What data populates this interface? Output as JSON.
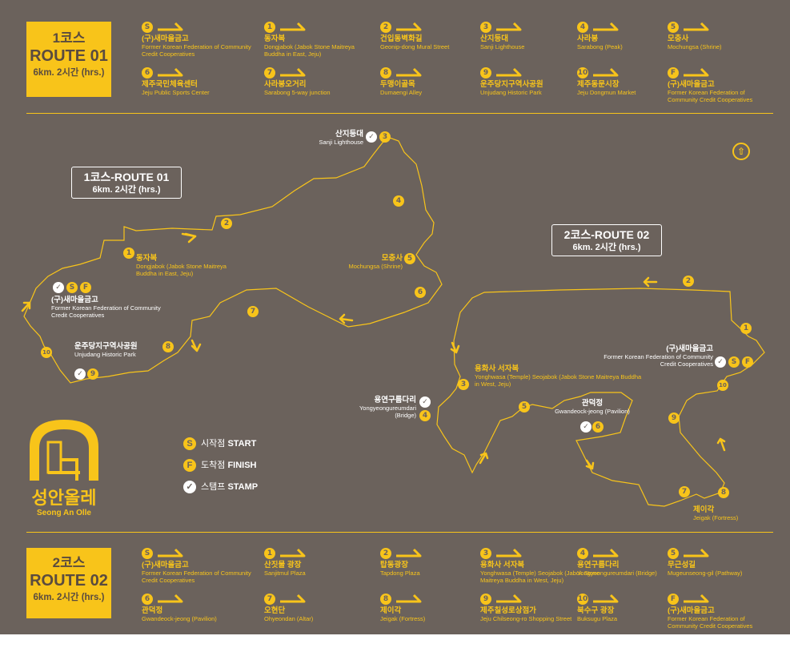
{
  "route1": {
    "box": {
      "line1": "1코스",
      "line2": "ROUTE 01",
      "line3": "6km. 2시간 (hrs.)"
    },
    "stops": [
      {
        "badge": "S",
        "ko": "(구)새마을금고",
        "en": "Former Korean Federation of Community Credit Cooperatives"
      },
      {
        "badge": "1",
        "ko": "동자복",
        "en": "Dongjabok (Jabok Stone Maitreya Buddha in East, Jeju)"
      },
      {
        "badge": "2",
        "ko": "건입동벽화길",
        "en": "Geonip-dong Mural Street"
      },
      {
        "badge": "3",
        "ko": "산지등대",
        "en": "Sanji Lighthouse"
      },
      {
        "badge": "4",
        "ko": "사라봉",
        "en": "Sarabong (Peak)"
      },
      {
        "badge": "5",
        "ko": "모충사",
        "en": "Mochungsa (Shrine)"
      },
      {
        "badge": "6",
        "ko": "제주국민체육센터",
        "en": "Jeju Public Sports Center"
      },
      {
        "badge": "7",
        "ko": "사라봉오거리",
        "en": "Sarabong 5-way junction"
      },
      {
        "badge": "8",
        "ko": "두맹이골목",
        "en": "Dumaengi Alley"
      },
      {
        "badge": "9",
        "ko": "운주당지구역사공원",
        "en": "Unjudang Historic Park"
      },
      {
        "badge": "10",
        "ko": "제주동문시장",
        "en": "Jeju Dongmun Market"
      },
      {
        "badge": "F",
        "ko": "(구)새마을금고",
        "en": "Former Korean Federation of Community Credit Cooperatives"
      }
    ]
  },
  "route2": {
    "box": {
      "line1": "2코스",
      "line2": "ROUTE 02",
      "line3": "6km. 2시간 (hrs.)"
    },
    "stops": [
      {
        "badge": "S",
        "ko": "(구)새마을금고",
        "en": "Former Korean Federation of Community Credit Cooperatives"
      },
      {
        "badge": "1",
        "ko": "산짓물 광장",
        "en": "Sanjitmul Plaza"
      },
      {
        "badge": "2",
        "ko": "탑동광장",
        "en": "Tapdong Plaza"
      },
      {
        "badge": "3",
        "ko": "용화사 서자복",
        "en": "Yonghwasa (Temple) Seojabok (Jabok Stone Maitreya Buddha in West, Jeju)"
      },
      {
        "badge": "4",
        "ko": "용연구름다리",
        "en": "Yongyeongureumdari (Bridge)"
      },
      {
        "badge": "5",
        "ko": "무근성길",
        "en": "Mugeunseong-gil (Pathway)"
      },
      {
        "badge": "6",
        "ko": "관덕정",
        "en": "Gwandeock-jeong (Pavilion)"
      },
      {
        "badge": "7",
        "ko": "오현단",
        "en": "Ohyeondan (Altar)"
      },
      {
        "badge": "8",
        "ko": "제이각",
        "en": "Jeigak (Fortress)"
      },
      {
        "badge": "9",
        "ko": "제주칠성로상점가",
        "en": "Jeju Chilseong-ro Shopping Street"
      },
      {
        "badge": "10",
        "ko": "북수구 광장",
        "en": "Buksugu Plaza"
      },
      {
        "badge": "F",
        "ko": "(구)새마을금고",
        "en": "Former Korean Federation of Community Credit Cooperatives"
      }
    ]
  },
  "map": {
    "route1_title": {
      "a": "1코스-ROUTE 01",
      "b": "6km. 2시간 (hrs.)"
    },
    "route2_title": {
      "a": "2코스-ROUTE 02",
      "b": "6km. 2시간 (hrs.)"
    },
    "r1_labels": {
      "sanji": {
        "ko": "산지등대",
        "en": "Sanji Lighthouse"
      },
      "dongjabok": {
        "ko": "동자복",
        "en": "Dongjabok (Jabok Stone Maitreya Buddha in East, Jeju)"
      },
      "mochungsa": {
        "ko": "모충사",
        "en": "Mochungsa (Shrine)"
      },
      "start": {
        "ko": "(구)새마을금고",
        "en": "Former Korean Federation of Community Credit Cooperatives"
      },
      "unjudang": {
        "ko": "운주당지구역사공원",
        "en": "Unjudang Historic Park"
      }
    },
    "r2_labels": {
      "start": {
        "ko": "(구)새마을금고",
        "en": "Former Korean Federation of Community Credit Cooperatives"
      },
      "yonghwasa": {
        "ko": "용화사 서자복",
        "en": "Yonghwasa (Temple) Seojabok (Jabok Stone Maitreya Buddha in West, Jeju)"
      },
      "bridge": {
        "ko": "용연구름다리",
        "en": "Yongyeongureumdari (Bridge)"
      },
      "gwandeok": {
        "ko": "관덕정",
        "en": "Gwandeock-jeong (Pavilion)"
      },
      "jeigak": {
        "ko": "제이각",
        "en": "Jeigak (Fortress)"
      }
    },
    "compass_icon": "compass-icon"
  },
  "legend": {
    "start": {
      "badge": "S",
      "ko": "시작점",
      "en": "START"
    },
    "finish": {
      "badge": "F",
      "ko": "도착점",
      "en": "FINISH"
    },
    "stamp": {
      "ko": "스탬프",
      "en": "STAMP"
    }
  },
  "logo": {
    "ko": "성안올레",
    "en": "Seong An Olle"
  },
  "colors": {
    "background": "#6b625c",
    "accent": "#f8c41a",
    "text": "#ffffff"
  }
}
